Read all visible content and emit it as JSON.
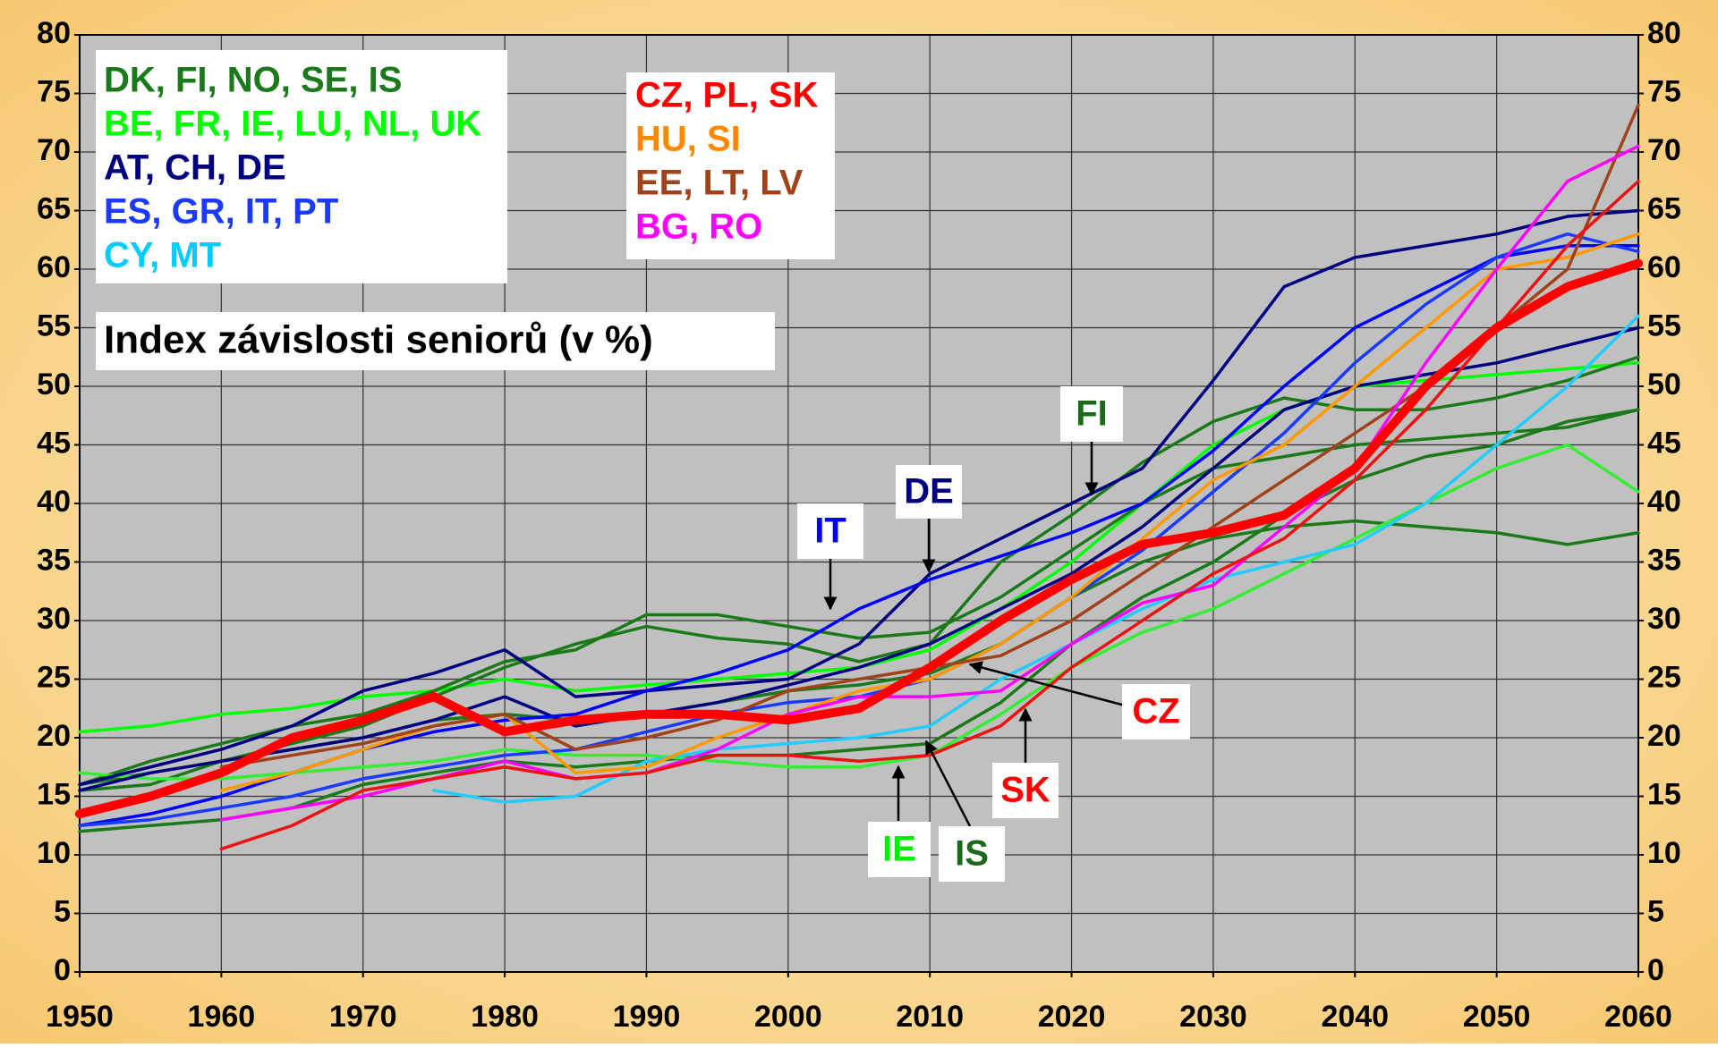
{
  "chart_data": {
    "type": "line",
    "title": "Index závislosti seniorů (v %)",
    "x": [
      1950,
      1955,
      1960,
      1965,
      1970,
      1975,
      1980,
      1985,
      1990,
      1995,
      2000,
      2005,
      2010,
      2015,
      2020,
      2025,
      2030,
      2035,
      2040,
      2045,
      2050,
      2055,
      2060
    ],
    "xlim": [
      1950,
      2060
    ],
    "xticks": [
      1950,
      1960,
      1970,
      1980,
      1990,
      2000,
      2010,
      2020,
      2030,
      2040,
      2050,
      2060
    ],
    "ylim": [
      0,
      80
    ],
    "yticks": [
      0,
      5,
      10,
      15,
      20,
      25,
      30,
      35,
      40,
      45,
      50,
      55,
      60,
      65,
      70,
      75,
      80
    ],
    "y2lim": [
      0,
      80
    ],
    "y2ticks": [
      0,
      5,
      10,
      15,
      20,
      25,
      30,
      35,
      40,
      45,
      50,
      55,
      60,
      65,
      70,
      75,
      80
    ],
    "grid": true,
    "series": [
      {
        "color": "#00ff00",
        "values": [
          20.5,
          21,
          22,
          22.5,
          23.5,
          24,
          25,
          24,
          24.5,
          25,
          25.5,
          26,
          27.5,
          31,
          35,
          40,
          45,
          48,
          50,
          50.5,
          51,
          51.5,
          52
        ]
      },
      {
        "color": "#1a7a1a",
        "values": [
          16,
          18,
          19.5,
          21,
          22,
          24,
          26.5,
          27.5,
          30.5,
          30.5,
          29.5,
          28.5,
          29,
          32,
          36,
          40,
          43,
          44,
          45,
          45.5,
          46,
          46.5,
          48
        ]
      },
      {
        "color": "#1a7a1a",
        "values": [
          16,
          17,
          18,
          19,
          20,
          21.5,
          22,
          21.5,
          22,
          23,
          24,
          24.5,
          25.5,
          28,
          32,
          35,
          37,
          38,
          38.5,
          38,
          37.5,
          36.5,
          37.5
        ]
      },
      {
        "color": "#1a7a1a",
        "values": [
          15.5,
          16,
          18,
          19.5,
          21,
          23.5,
          26,
          28,
          29.5,
          28.5,
          28,
          26.5,
          28,
          35,
          39,
          43.5,
          47,
          49,
          48,
          48,
          49,
          50.5,
          52.5
        ]
      },
      {
        "color": "#1a7a1a",
        "values": [
          12,
          12.5,
          13,
          14,
          16,
          17,
          18,
          17.5,
          18,
          18.5,
          18.5,
          19,
          19.5,
          23,
          28,
          32,
          35,
          39,
          42,
          44,
          45,
          47,
          48
        ]
      },
      {
        "color": "#33ee33",
        "values": [
          17,
          16.5,
          16.5,
          17,
          17.5,
          18,
          19,
          18.5,
          18.5,
          18,
          17.5,
          17.5,
          18.5,
          22,
          26,
          29,
          31,
          34,
          37,
          40,
          43,
          45,
          41
        ]
      },
      {
        "color": "#000080",
        "values": [
          16,
          17.5,
          19,
          21,
          24,
          25.5,
          27.5,
          23.5,
          24,
          24.5,
          25,
          28,
          34,
          37,
          40,
          43,
          50.5,
          58.5,
          61,
          62,
          63,
          64.5,
          65
        ]
      },
      {
        "color": "#000080",
        "values": [
          15.5,
          17,
          18,
          19,
          20,
          21.5,
          23.5,
          21,
          22,
          23,
          24.5,
          26,
          28,
          31,
          34,
          38,
          43,
          48,
          50,
          51,
          52,
          53.5,
          55
        ]
      },
      {
        "color": "#0000ff",
        "values": [
          12.5,
          13.5,
          15,
          17,
          19,
          20.5,
          21.5,
          22,
          24,
          25.5,
          27.5,
          31,
          33.5,
          35.5,
          37.5,
          40,
          44.5,
          50,
          55,
          58,
          61,
          62,
          62
        ]
      },
      {
        "color": "#1a3aff",
        "values": [
          12.5,
          13,
          14,
          15,
          16.5,
          17.5,
          18.5,
          19,
          20.5,
          22,
          23,
          23.5,
          25,
          28,
          32,
          36,
          41,
          46,
          52,
          57,
          61,
          63,
          61.5
        ]
      },
      {
        "color": "#22ccff",
        "values": [
          null,
          null,
          null,
          null,
          null,
          15.5,
          14.5,
          15,
          18,
          19,
          19.5,
          20,
          21,
          25,
          28,
          31,
          33.5,
          35,
          36.5,
          40,
          45,
          50,
          56
        ]
      },
      {
        "color": "#ff9900",
        "values": [
          null,
          null,
          15.5,
          17,
          19,
          21,
          22,
          17,
          17.5,
          20,
          22,
          24,
          25,
          28,
          32,
          37,
          42,
          45,
          50,
          55,
          60,
          61,
          63
        ]
      },
      {
        "color": "#a0421a",
        "values": [
          null,
          null,
          17.5,
          18.5,
          19.5,
          21,
          22,
          19,
          20,
          21.5,
          24,
          25,
          26,
          27,
          30,
          34,
          38,
          42,
          46,
          50,
          55,
          60,
          74
        ]
      },
      {
        "color": "#ff00ff",
        "values": [
          null,
          null,
          13,
          14,
          15,
          16.5,
          18,
          16.5,
          17,
          19,
          22,
          23.5,
          23.5,
          24,
          28,
          31.5,
          33,
          38,
          43,
          52,
          60,
          67.5,
          70.5
        ]
      },
      {
        "color": "#ee1111",
        "values": [
          null,
          null,
          10.5,
          12.5,
          15.5,
          16.5,
          17.5,
          16.5,
          17,
          18.5,
          18.5,
          18,
          18.5,
          21,
          26,
          30,
          34,
          37,
          42,
          48,
          55,
          62,
          67.5
        ]
      },
      {
        "color": "#ff0000",
        "width": 10,
        "values": [
          13.5,
          15,
          17,
          20,
          21.5,
          23.5,
          20.5,
          21.5,
          22,
          22,
          21.5,
          22.5,
          26,
          30,
          33.5,
          36.5,
          37.5,
          39,
          43,
          50,
          55,
          58.5,
          60.5
        ]
      }
    ],
    "legend_groups": [
      [
        {
          "label": "DK, FI, NO, SE, IS",
          "color": "#1a7a1a"
        },
        {
          "label": "BE, FR, IE, LU, NL, UK",
          "color": "#00ff00"
        },
        {
          "label": "AT, CH, DE",
          "color": "#000080"
        },
        {
          "label": "ES, GR, IT, PT",
          "color": "#1a3aff"
        },
        {
          "label": "CY, MT",
          "color": "#00ccff"
        }
      ],
      [
        {
          "label": "CZ, PL, SK",
          "color": "#ff0000"
        },
        {
          "label": "HU, SI",
          "color": "#ff8800"
        },
        {
          "label": "EE, LT, LV",
          "color": "#a0421a"
        },
        {
          "label": "BG, RO",
          "color": "#ff00ff"
        }
      ]
    ],
    "annotations": [
      {
        "text": "FI",
        "color": "#1a6a1a"
      },
      {
        "text": "DE",
        "color": "#000080"
      },
      {
        "text": "IT",
        "color": "#0000ff"
      },
      {
        "text": "CZ",
        "color": "#ff0000"
      },
      {
        "text": "SK",
        "color": "#ff0000"
      },
      {
        "text": "IE",
        "color": "#00ee00"
      },
      {
        "text": "IS",
        "color": "#1a6a1a"
      }
    ]
  }
}
